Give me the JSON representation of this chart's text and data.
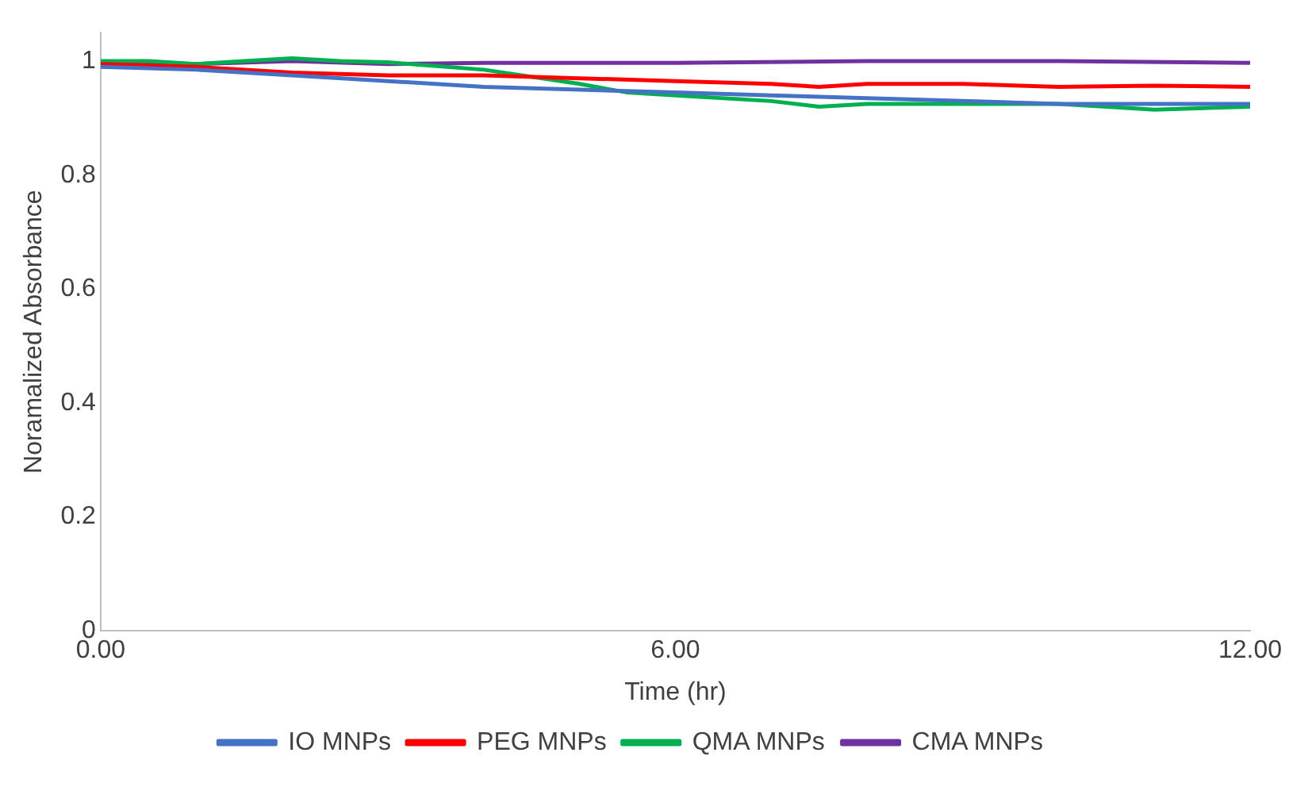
{
  "chart_data": {
    "type": "line",
    "xlabel": "Time (hr)",
    "ylabel": "Noramalized Absorbance",
    "xlim": [
      0,
      12
    ],
    "xticks": [
      {
        "value": 0,
        "label": "0.00"
      },
      {
        "value": 6,
        "label": "6.00"
      },
      {
        "value": 12,
        "label": "12.00"
      }
    ],
    "ylim": [
      0,
      1.05
    ],
    "yticks": [
      0,
      0.2,
      0.4,
      0.6,
      0.8,
      1
    ],
    "grid": false,
    "legend": "bottom",
    "marker": "none",
    "line_style": "solid",
    "series": [
      {
        "name": "IO MNPs",
        "color": "#4472c4",
        "x": [
          0,
          1,
          2,
          3,
          4,
          5,
          6,
          7,
          8,
          9,
          10,
          11,
          12
        ],
        "values": [
          0.99,
          0.985,
          0.975,
          0.965,
          0.955,
          0.95,
          0.945,
          0.94,
          0.935,
          0.93,
          0.925,
          0.925,
          0.925
        ]
      },
      {
        "name": "PEG MNPs",
        "color": "#ff0000",
        "x": [
          0,
          1,
          2,
          3,
          4,
          5,
          6,
          7,
          7.5,
          8,
          9,
          10,
          11,
          12
        ],
        "values": [
          0.995,
          0.99,
          0.98,
          0.975,
          0.975,
          0.97,
          0.965,
          0.96,
          0.955,
          0.96,
          0.96,
          0.955,
          0.957,
          0.955
        ]
      },
      {
        "name": "QMA MNPs",
        "color": "#00b050",
        "x": [
          0,
          0.5,
          1,
          1.5,
          2,
          2.5,
          3,
          4,
          5,
          5.5,
          6,
          7,
          7.5,
          8,
          9,
          10,
          10.5,
          11,
          12
        ],
        "values": [
          1.0,
          1.0,
          0.995,
          1.0,
          1.005,
          1.0,
          0.998,
          0.985,
          0.96,
          0.945,
          0.94,
          0.93,
          0.92,
          0.925,
          0.925,
          0.925,
          0.92,
          0.915,
          0.92
        ]
      },
      {
        "name": "CMA MNPs",
        "color": "#7030a0",
        "x": [
          0,
          1,
          2,
          3,
          4,
          6,
          8,
          10,
          12
        ],
        "values": [
          0.995,
          0.995,
          1.0,
          0.995,
          0.997,
          0.997,
          1.0,
          1.0,
          0.997
        ]
      }
    ]
  }
}
